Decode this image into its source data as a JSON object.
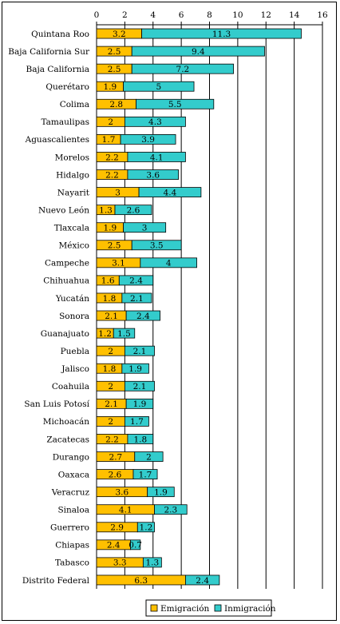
{
  "chart_data": {
    "type": "bar",
    "stacked": true,
    "orientation": "horizontal",
    "title": "",
    "xlabel": "",
    "ylabel": "",
    "xlim": [
      0,
      16
    ],
    "xticks": [
      0,
      2,
      4,
      6,
      8,
      10,
      12,
      14,
      16
    ],
    "grid": true,
    "legend_position": "bottom-right",
    "categories": [
      "Quintana Roo",
      "Baja California Sur",
      "Baja California",
      "Querétaro",
      "Colima",
      "Tamaulipas",
      "Aguascalientes",
      "Morelos",
      "Hidalgo",
      "Nayarit",
      "Nuevo León",
      "Tlaxcala",
      "México",
      "Campeche",
      "Chihuahua",
      "Yucatán",
      "Sonora",
      "Guanajuato",
      "Puebla",
      "Jalisco",
      "Coahuila",
      "San Luis Potosí",
      "Michoacán",
      "Zacatecas",
      "Durango",
      "Oaxaca",
      "Veracruz",
      "Sinaloa",
      "Guerrero",
      "Chiapas",
      "Tabasco",
      "Distrito Federal"
    ],
    "series": [
      {
        "name": "Emigración",
        "color": "#FFC000",
        "values": [
          3.2,
          2.5,
          2.5,
          1.9,
          2.8,
          2,
          1.7,
          2.2,
          2.2,
          3,
          1.3,
          1.9,
          2.5,
          3.1,
          1.6,
          1.8,
          2.1,
          1.2,
          2,
          1.8,
          2,
          2.1,
          2,
          2.2,
          2.7,
          2.6,
          3.6,
          4.1,
          2.9,
          2.4,
          3.3,
          6.3
        ]
      },
      {
        "name": "Inmigración",
        "color": "#33CCCC",
        "values": [
          11.3,
          9.4,
          7.2,
          5,
          5.5,
          4.3,
          3.9,
          4.1,
          3.6,
          4.4,
          2.6,
          3,
          3.5,
          4,
          2.4,
          2.1,
          2.4,
          1.5,
          2.1,
          1.9,
          2.1,
          1.9,
          1.7,
          1.8,
          2,
          1.7,
          1.9,
          2.3,
          1.2,
          0.7,
          1.3,
          2.4
        ]
      }
    ]
  }
}
